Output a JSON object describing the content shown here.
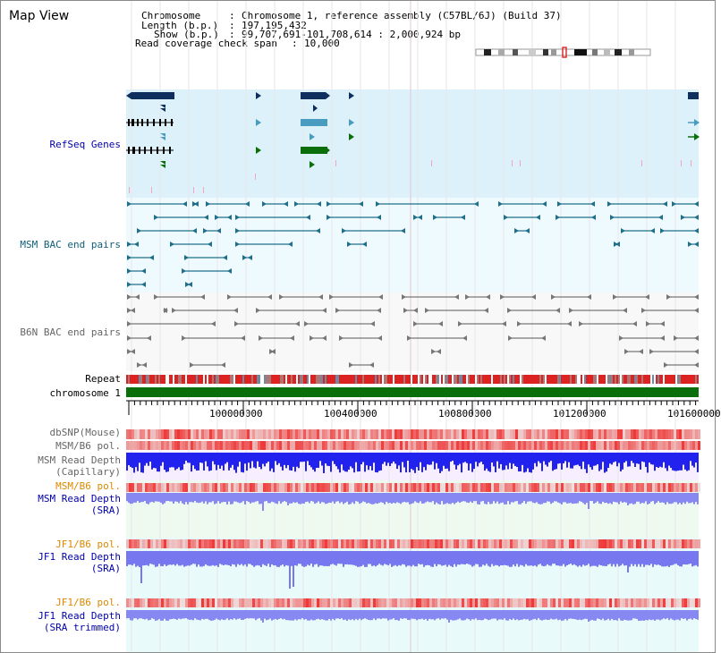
{
  "title": "Map View",
  "info": {
    "chromosome_key": "Chromosome",
    "chromosome_val": "Chromosome 1, reference assembly (C57BL/6J) (Build 37)",
    "length_key": "Length (b.p.)",
    "length_val": "197,195,432",
    "show_key": "Show (b.p.)",
    "show_val": "99,707,691-101,708,614 : 2,000,924 bp",
    "coverage_key": "Read coverage check span",
    "coverage_val": "10,000"
  },
  "tracks": {
    "refseq": "RefSeq Genes",
    "msm_bac": "MSM BAC end pairs",
    "b6n_bac": "B6N BAC end pairs",
    "repeat": "Repeat",
    "chromosome": "chromosome 1",
    "dbsnp": "dbSNP(Mouse)",
    "msm_pol_1": "MSM/B6 pol.",
    "msm_depth_cap_1": "MSM Read Depth",
    "msm_depth_cap_2": "(Capillary)",
    "msm_pol_2": "MSM/B6 pol.",
    "msm_depth_sra_1": "MSM Read Depth",
    "msm_depth_sra_2": "(SRA)",
    "jf1_pol_1": "JF1/B6 pol.",
    "jf1_depth_sra_1": "JF1 Read Depth",
    "jf1_depth_sra_2": "(SRA)",
    "jf1_pol_2": "JF1/B6 pol.",
    "jf1_depth_trim_1": "JF1 Read Depth",
    "jf1_depth_trim_2": "(SRA trimmed)"
  },
  "axis": {
    "ticks": [
      "100000000",
      "100400000",
      "100800000",
      "101200000",
      "101600000"
    ]
  },
  "colors": {
    "refseq_bg": "#ddf1fa",
    "bac_bg": "#eefafd",
    "gene_navy": "#0e2f5e",
    "gene_teal": "#4a9bc0",
    "gene_green": "#0a6e0a",
    "chromosome_bar": "#0a6e0a",
    "pol_red": "#ee2222",
    "depth_blue": "#2222ee",
    "depth_light": "#7777f2",
    "label_orange": "#dd8800",
    "label_blue": "#0000aa"
  }
}
